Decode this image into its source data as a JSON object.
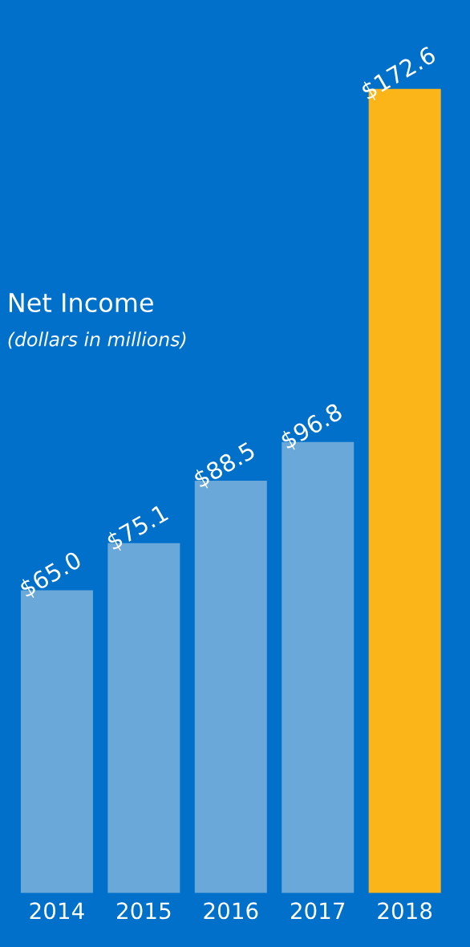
{
  "chart_data": {
    "type": "bar",
    "title": "Net Income",
    "subtitle": "(dollars in millions)",
    "categories": [
      "2014",
      "2015",
      "2016",
      "2017",
      "2018"
    ],
    "values": [
      65.0,
      75.1,
      88.5,
      96.8,
      172.6
    ],
    "colors": [
      "#6aa8da",
      "#6aa8da",
      "#6aa8da",
      "#6aa8da",
      "#fbb519"
    ],
    "value_labels": [
      "$65.0",
      "$75.1",
      "$88.5",
      "$96.8",
      "$172.6"
    ],
    "grid": false,
    "legend": false,
    "tick_labels": "x"
  }
}
